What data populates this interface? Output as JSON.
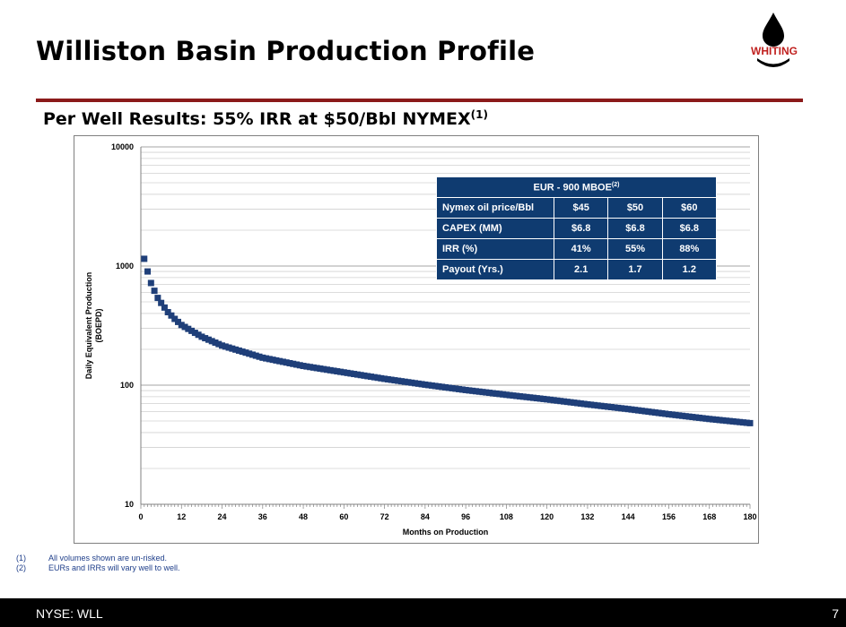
{
  "slide": {
    "title": "Williston Basin Production Profile",
    "subtitle": "Per Well Results: 55% IRR at $50/Bbl NYMEX",
    "subtitle_sup": "(1)",
    "logo_text": "WHITING",
    "page_number": "7",
    "ticker": "NYSE: WLL",
    "accent_color": "#8b1a1a",
    "table_color": "#0f3b70",
    "series_color": "#1f3f79"
  },
  "table": {
    "header": "EUR - 900 MBOE",
    "header_sup": "(2)",
    "rows": [
      {
        "label": "Nymex oil price/Bbl",
        "v1": "$45",
        "v2": "$50",
        "v3": "$60"
      },
      {
        "label": "CAPEX (MM)",
        "v1": "$6.8",
        "v2": "$6.8",
        "v3": "$6.8"
      },
      {
        "label": "IRR (%)",
        "v1": "41%",
        "v2": "55%",
        "v3": "88%"
      },
      {
        "label": "Payout (Yrs.)",
        "v1": "2.1",
        "v2": "1.7",
        "v3": "1.2"
      }
    ]
  },
  "footnotes": [
    {
      "n": "(1)",
      "text": "All volumes shown are un-risked."
    },
    {
      "n": "(2)",
      "text": "EURs and IRRs will vary well to well."
    }
  ],
  "chart_data": {
    "type": "scatter",
    "xlabel": "Months on Production",
    "ylabel": "Daily Equivalent Production (BOEPD)",
    "ylabel_line1": "Daily Equivalent Production",
    "ylabel_line2": "(BOEPD)",
    "yscale": "log",
    "ylim": [
      10,
      10000
    ],
    "xlim": [
      0,
      180
    ],
    "xticks": [
      0,
      12,
      24,
      36,
      48,
      60,
      72,
      84,
      96,
      108,
      120,
      132,
      144,
      156,
      168,
      180
    ],
    "yticks": [
      10,
      100,
      1000,
      10000
    ],
    "ytick_labels": [
      "10",
      "100",
      "1000",
      "10000"
    ],
    "grid": true,
    "series": [
      {
        "marker": "square",
        "curve_points": [
          {
            "x": 1,
            "y": 1150
          },
          {
            "x": 2,
            "y": 900
          },
          {
            "x": 3,
            "y": 720
          },
          {
            "x": 4,
            "y": 620
          },
          {
            "x": 5,
            "y": 540
          },
          {
            "x": 6,
            "y": 490
          },
          {
            "x": 8,
            "y": 410
          },
          {
            "x": 10,
            "y": 360
          },
          {
            "x": 12,
            "y": 320
          },
          {
            "x": 18,
            "y": 255
          },
          {
            "x": 24,
            "y": 215
          },
          {
            "x": 36,
            "y": 170
          },
          {
            "x": 48,
            "y": 145
          },
          {
            "x": 60,
            "y": 128
          },
          {
            "x": 72,
            "y": 113
          },
          {
            "x": 84,
            "y": 101
          },
          {
            "x": 96,
            "y": 91
          },
          {
            "x": 108,
            "y": 83
          },
          {
            "x": 120,
            "y": 76
          },
          {
            "x": 132,
            "y": 69
          },
          {
            "x": 144,
            "y": 63
          },
          {
            "x": 156,
            "y": 57
          },
          {
            "x": 168,
            "y": 52
          },
          {
            "x": 180,
            "y": 48
          }
        ]
      }
    ]
  }
}
